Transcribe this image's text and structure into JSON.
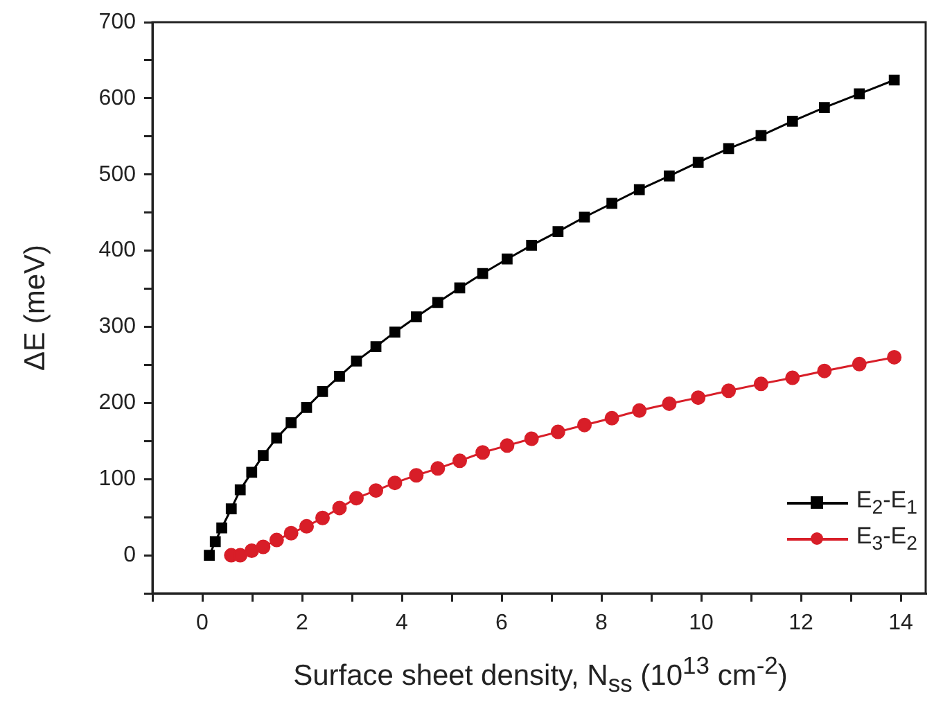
{
  "chart_data": {
    "type": "line",
    "xlabel": "Surface sheet density,  N$_{ss}$ (10$^{13}$ cm$^{-2}$)",
    "ylabel": "ΔE (meV)",
    "xlim": [
      -1,
      14.5
    ],
    "xticks": [
      {
        "value": -1,
        "label": null
      },
      0,
      {
        "value": 1,
        "label": null
      },
      2,
      {
        "value": 3,
        "label": null
      },
      4,
      {
        "value": 5,
        "label": null
      },
      6,
      {
        "value": 7,
        "label": null
      },
      8,
      {
        "value": 9,
        "label": null
      },
      10,
      {
        "value": 11,
        "label": null
      },
      12,
      {
        "value": 13,
        "label": null
      },
      14
    ],
    "ylim": [
      -50,
      700
    ],
    "yticks": [
      {
        "value": -50,
        "label": null
      },
      0,
      {
        "value": 50,
        "label": null
      },
      100,
      {
        "value": 150,
        "label": null
      },
      200,
      {
        "value": 250,
        "label": null
      },
      300,
      {
        "value": 350,
        "label": null
      },
      400,
      {
        "value": 450,
        "label": null
      },
      500,
      {
        "value": 550,
        "label": null
      },
      600,
      {
        "value": 650,
        "label": null
      },
      700
    ],
    "grid": false,
    "legend": "bottom right",
    "line_style": "solid",
    "series": [
      {
        "name": "E$_{2}$-E$_{1}$",
        "color": "#000000",
        "marker": "square",
        "x": [
          0.14,
          0.26,
          0.39,
          0.58,
          0.76,
          0.99,
          1.22,
          1.49,
          1.78,
          2.09,
          2.41,
          2.75,
          3.09,
          3.48,
          3.86,
          4.29,
          4.72,
          5.16,
          5.62,
          6.11,
          6.6,
          7.13,
          7.66,
          8.21,
          8.76,
          9.36,
          9.94,
          10.55,
          11.2,
          11.83,
          12.47,
          13.17,
          13.87
        ],
        "values": [
          0,
          18,
          36,
          61,
          86,
          109,
          131,
          154,
          174,
          194,
          215,
          235,
          255,
          274,
          293,
          313,
          332,
          351,
          370,
          389,
          407,
          425,
          444,
          462,
          480,
          498,
          516,
          534,
          551,
          570,
          588,
          606,
          624
        ]
      },
      {
        "name": "E$_{3}$-E$_{2}$",
        "color": "#d81e28",
        "marker": "circle",
        "x": [
          0.58,
          0.76,
          0.99,
          1.22,
          1.49,
          1.78,
          2.09,
          2.41,
          2.75,
          3.09,
          3.48,
          3.86,
          4.29,
          4.72,
          5.16,
          5.62,
          6.11,
          6.6,
          7.13,
          7.66,
          8.21,
          8.76,
          9.36,
          9.94,
          10.55,
          11.2,
          11.83,
          12.47,
          13.17,
          13.87
        ],
        "values": [
          0,
          0,
          6,
          11,
          20,
          29,
          38,
          49,
          62,
          75,
          85,
          95,
          105,
          114,
          124,
          135,
          144,
          153,
          162,
          171,
          180,
          190,
          199,
          207,
          216,
          225,
          233,
          242,
          251,
          260
        ]
      }
    ]
  }
}
